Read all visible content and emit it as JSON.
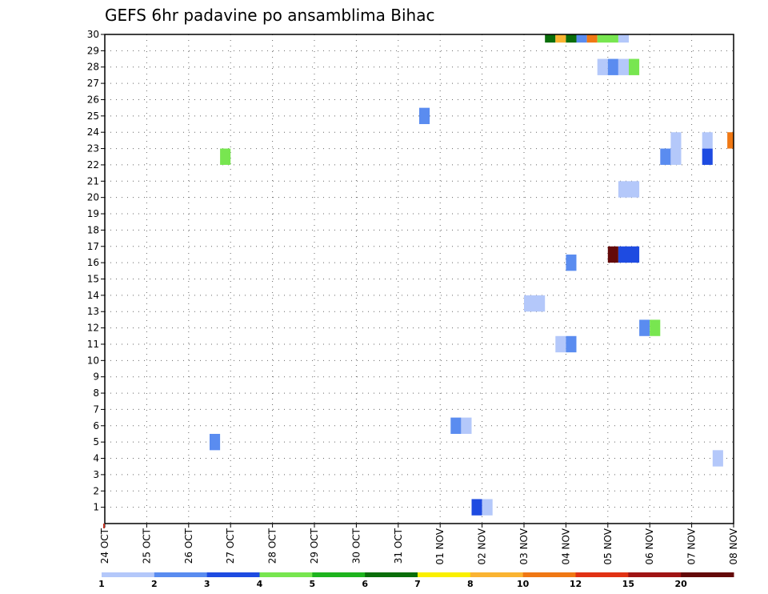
{
  "chart_data": {
    "type": "heatmap",
    "title": "GEFS 6hr padavine po ansamblima Bihac",
    "x_tick_labels": [
      "24 OCT",
      "25 OCT",
      "26 OCT",
      "27 OCT",
      "28 OCT",
      "29 OCT",
      "30 OCT",
      "31 OCT",
      "01 NOV",
      "02 NOV",
      "03 NOV",
      "04 NOV",
      "05 NOV",
      "06 NOV",
      "07 NOV",
      "08 NOV"
    ],
    "y_tick_labels": [
      "1",
      "2",
      "3",
      "4",
      "5",
      "6",
      "7",
      "8",
      "9",
      "10",
      "11",
      "12",
      "13",
      "14",
      "15",
      "16",
      "17",
      "18",
      "19",
      "20",
      "21",
      "22",
      "23",
      "24",
      "25",
      "26",
      "27",
      "28",
      "29",
      "30"
    ],
    "xlim_days": [
      0,
      15
    ],
    "ylim": [
      0,
      30
    ],
    "grid": true,
    "colorbar": {
      "position": "bottom",
      "labels": [
        "1",
        "2",
        "3",
        "4",
        "5",
        "6",
        "7",
        "8",
        "10",
        "12",
        "15",
        "20"
      ],
      "colors": [
        "#b4c8fa",
        "#5a8cf0",
        "#1e4be1",
        "#78e650",
        "#1eb41e",
        "#0a6e0a",
        "#faf000",
        "#fab432",
        "#f07814",
        "#e13214",
        "#a01414",
        "#640a0a"
      ]
    },
    "cells": [
      {
        "day": 2.5,
        "duration": 0.25,
        "y0": 4.5,
        "y1": 5.5,
        "level": 2
      },
      {
        "day": 2.75,
        "duration": 0.25,
        "y0": 22.0,
        "y1": 23.0,
        "level": 4
      },
      {
        "day": 7.5,
        "duration": 0.25,
        "y0": 24.5,
        "y1": 25.5,
        "level": 2
      },
      {
        "day": 8.25,
        "duration": 0.25,
        "y0": 5.5,
        "y1": 6.5,
        "level": 2
      },
      {
        "day": 8.5,
        "duration": 0.25,
        "y0": 5.5,
        "y1": 6.5,
        "level": 1
      },
      {
        "day": 8.75,
        "duration": 0.25,
        "y0": 0.5,
        "y1": 1.5,
        "level": 3
      },
      {
        "day": 9.0,
        "duration": 0.25,
        "y0": 0.5,
        "y1": 1.5,
        "level": 1
      },
      {
        "day": 10.0,
        "duration": 0.5,
        "y0": 13.0,
        "y1": 14.0,
        "level": 1
      },
      {
        "day": 10.75,
        "duration": 0.25,
        "y0": 10.5,
        "y1": 11.5,
        "level": 1
      },
      {
        "day": 11.0,
        "duration": 0.25,
        "y0": 10.5,
        "y1": 11.5,
        "level": 2
      },
      {
        "day": 11.0,
        "duration": 0.25,
        "y0": 15.5,
        "y1": 16.5,
        "level": 2
      },
      {
        "day": 10.5,
        "duration": 0.25,
        "y0": 29.5,
        "y1": 30.0,
        "level": 6
      },
      {
        "day": 10.75,
        "duration": 0.25,
        "y0": 29.5,
        "y1": 30.0,
        "level": 8
      },
      {
        "day": 11.0,
        "duration": 0.25,
        "y0": 29.5,
        "y1": 30.0,
        "level": 6
      },
      {
        "day": 11.25,
        "duration": 0.25,
        "y0": 29.5,
        "y1": 30.0,
        "level": 2
      },
      {
        "day": 11.5,
        "duration": 0.25,
        "y0": 29.5,
        "y1": 30.0,
        "level": 9
      },
      {
        "day": 11.75,
        "duration": 0.5,
        "y0": 29.5,
        "y1": 30.0,
        "level": 4
      },
      {
        "day": 12.25,
        "duration": 0.25,
        "y0": 29.5,
        "y1": 30.0,
        "level": 1
      },
      {
        "day": 11.75,
        "duration": 0.25,
        "y0": 27.5,
        "y1": 28.5,
        "level": 1
      },
      {
        "day": 12.0,
        "duration": 0.25,
        "y0": 27.5,
        "y1": 28.5,
        "level": 2
      },
      {
        "day": 12.25,
        "duration": 0.25,
        "y0": 27.5,
        "y1": 28.5,
        "level": 1
      },
      {
        "day": 12.5,
        "duration": 0.25,
        "y0": 27.5,
        "y1": 28.5,
        "level": 4
      },
      {
        "day": 12.25,
        "duration": 0.5,
        "y0": 20.0,
        "y1": 21.0,
        "level": 1
      },
      {
        "day": 12.0,
        "duration": 0.25,
        "y0": 16.0,
        "y1": 17.0,
        "level": 12
      },
      {
        "day": 12.25,
        "duration": 0.5,
        "y0": 16.0,
        "y1": 17.0,
        "level": 3
      },
      {
        "day": 12.75,
        "duration": 0.25,
        "y0": 11.5,
        "y1": 12.5,
        "level": 2
      },
      {
        "day": 13.0,
        "duration": 0.25,
        "y0": 11.5,
        "y1": 12.5,
        "level": 4
      },
      {
        "day": 13.25,
        "duration": 0.25,
        "y0": 22.0,
        "y1": 23.0,
        "level": 2
      },
      {
        "day": 13.5,
        "duration": 0.25,
        "y0": 22.0,
        "y1": 24.0,
        "level": 1
      },
      {
        "day": 14.25,
        "duration": 0.25,
        "y0": 22.0,
        "y1": 23.0,
        "level": 3
      },
      {
        "day": 14.25,
        "duration": 0.25,
        "y0": 23.0,
        "y1": 24.0,
        "level": 1
      },
      {
        "day": 14.5,
        "duration": 0.25,
        "y0": 3.5,
        "y1": 4.5,
        "level": 1
      },
      {
        "day": 14.85,
        "duration": 0.15,
        "y0": 23.0,
        "y1": 24.0,
        "level": 9
      }
    ]
  }
}
